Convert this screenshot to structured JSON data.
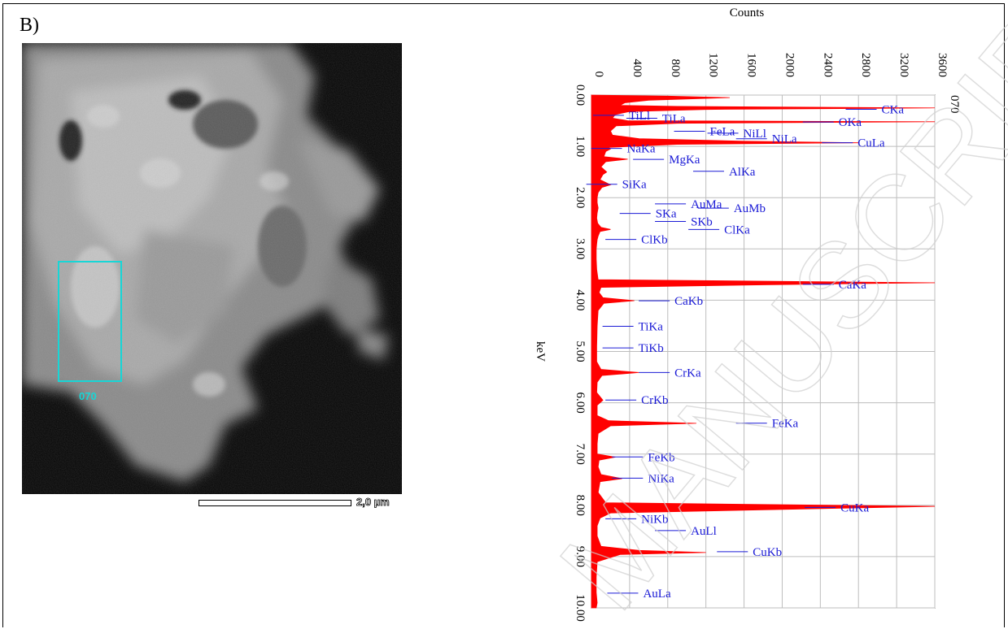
{
  "panel_label": "B)",
  "image": {
    "roi_label": "070",
    "scale_bar_label": "2,0 µm"
  },
  "watermark": "MANUSCRIPT",
  "chart_data": {
    "type": "area",
    "orientation": "rotated",
    "xlabel": "keV",
    "ylabel": "Counts",
    "spectrum_label": "070",
    "xlim": [
      0,
      10
    ],
    "ylim": [
      0,
      3600
    ],
    "x_ticks": [
      "0.00",
      "1.00",
      "2.00",
      "3.00",
      "4.00",
      "5.00",
      "6.00",
      "7.00",
      "8.00",
      "9.00",
      "10.00"
    ],
    "y_ticks": [
      "0",
      "400",
      "800",
      "1200",
      "1600",
      "2000",
      "2400",
      "2800",
      "3200",
      "3600"
    ],
    "grid": true,
    "fill_color": "#ff0000",
    "label_color": "#1a1ad6",
    "spectrum": [
      [
        0.0,
        0
      ],
      [
        0.02,
        800
      ],
      [
        0.05,
        1450
      ],
      [
        0.1,
        600
      ],
      [
        0.15,
        350
      ],
      [
        0.2,
        300
      ],
      [
        0.22,
        900
      ],
      [
        0.25,
        3600
      ],
      [
        0.28,
        1200
      ],
      [
        0.32,
        400
      ],
      [
        0.38,
        250
      ],
      [
        0.45,
        220
      ],
      [
        0.5,
        380
      ],
      [
        0.52,
        3600
      ],
      [
        0.55,
        900
      ],
      [
        0.6,
        260
      ],
      [
        0.7,
        200
      ],
      [
        0.78,
        220
      ],
      [
        0.85,
        500
      ],
      [
        0.9,
        1600
      ],
      [
        0.93,
        2800
      ],
      [
        0.96,
        900
      ],
      [
        1.02,
        180
      ],
      [
        1.05,
        200
      ],
      [
        1.1,
        150
      ],
      [
        1.2,
        130
      ],
      [
        1.25,
        380
      ],
      [
        1.3,
        150
      ],
      [
        1.4,
        100
      ],
      [
        1.5,
        160
      ],
      [
        1.55,
        120
      ],
      [
        1.65,
        90
      ],
      [
        1.75,
        200
      ],
      [
        1.8,
        110
      ],
      [
        1.9,
        70
      ],
      [
        2.0,
        60
      ],
      [
        2.1,
        60
      ],
      [
        2.2,
        70
      ],
      [
        2.3,
        60
      ],
      [
        2.4,
        55
      ],
      [
        2.5,
        65
      ],
      [
        2.58,
        100
      ],
      [
        2.62,
        200
      ],
      [
        2.66,
        90
      ],
      [
        2.75,
        70
      ],
      [
        2.82,
        60
      ],
      [
        2.9,
        55
      ],
      [
        3.0,
        50
      ],
      [
        3.2,
        50
      ],
      [
        3.4,
        55
      ],
      [
        3.6,
        70
      ],
      [
        3.66,
        3600
      ],
      [
        3.7,
        1800
      ],
      [
        3.75,
        100
      ],
      [
        3.85,
        80
      ],
      [
        3.95,
        120
      ],
      [
        4.01,
        450
      ],
      [
        4.06,
        130
      ],
      [
        4.2,
        70
      ],
      [
        4.5,
        60
      ],
      [
        4.9,
        55
      ],
      [
        5.2,
        55
      ],
      [
        5.35,
        100
      ],
      [
        5.41,
        500
      ],
      [
        5.47,
        110
      ],
      [
        5.6,
        60
      ],
      [
        5.8,
        55
      ],
      [
        5.95,
        120
      ],
      [
        6.05,
        60
      ],
      [
        6.25,
        60
      ],
      [
        6.35,
        180
      ],
      [
        6.4,
        1100
      ],
      [
        6.45,
        200
      ],
      [
        6.6,
        70
      ],
      [
        6.8,
        60
      ],
      [
        7.0,
        60
      ],
      [
        7.06,
        250
      ],
      [
        7.12,
        80
      ],
      [
        7.25,
        70
      ],
      [
        7.4,
        100
      ],
      [
        7.48,
        320
      ],
      [
        7.54,
        90
      ],
      [
        7.75,
        70
      ],
      [
        7.95,
        150
      ],
      [
        8.02,
        3600
      ],
      [
        8.08,
        2000
      ],
      [
        8.15,
        200
      ],
      [
        8.25,
        90
      ],
      [
        8.4,
        60
      ],
      [
        8.6,
        60
      ],
      [
        8.8,
        100
      ],
      [
        8.88,
        500
      ],
      [
        8.92,
        1200
      ],
      [
        8.96,
        300
      ],
      [
        9.1,
        60
      ],
      [
        9.4,
        50
      ],
      [
        9.7,
        50
      ],
      [
        9.9,
        60
      ],
      [
        10.0,
        50
      ]
    ],
    "peaks": [
      {
        "label": "CKa",
        "kev": 0.277,
        "counts": 3580,
        "label_counts": 3050
      },
      {
        "label": "TiLl",
        "kev": 0.395,
        "counts": 800,
        "label_counts": 400
      },
      {
        "label": "TiLa",
        "kev": 0.452,
        "counts": 800,
        "label_counts": 750
      },
      {
        "label": "OKa",
        "kev": 0.525,
        "counts": 3580,
        "label_counts": 2600
      },
      {
        "label": "FeLa",
        "kev": 0.705,
        "counts": 700,
        "label_counts": 1250
      },
      {
        "label": "NiLl",
        "kev": 0.743,
        "counts": 700,
        "label_counts": 1600
      },
      {
        "label": "NiLa",
        "kev": 0.851,
        "counts": 1500,
        "label_counts": 1900
      },
      {
        "label": "CuLa",
        "kev": 0.93,
        "counts": 2700,
        "label_counts": 2800
      },
      {
        "label": "NaKa",
        "kev": 1.041,
        "counts": 700,
        "label_counts": 380
      },
      {
        "label": "MgKa",
        "kev": 1.253,
        "counts": 1100,
        "label_counts": 820
      },
      {
        "label": "AlKa",
        "kev": 1.486,
        "counts": 1100,
        "label_counts": 1450
      },
      {
        "label": "SiKa",
        "kev": 1.739,
        "counts": 600,
        "label_counts": 330
      },
      {
        "label": "AuMa",
        "kev": 2.121,
        "counts": 700,
        "label_counts": 1050
      },
      {
        "label": "AuMb",
        "kev": 2.204,
        "counts": 700,
        "label_counts": 1500
      },
      {
        "label": "SKa",
        "kev": 2.307,
        "counts": 700,
        "label_counts": 680
      },
      {
        "label": "SKb",
        "kev": 2.464,
        "counts": 600,
        "label_counts": 1050
      },
      {
        "label": "ClKa",
        "kev": 2.621,
        "counts": 900,
        "label_counts": 1400
      },
      {
        "label": "ClKb",
        "kev": 2.815,
        "counts": 500,
        "label_counts": 530
      },
      {
        "label": "CaKa",
        "kev": 3.69,
        "counts": 3400,
        "label_counts": 2600
      },
      {
        "label": "CaKb",
        "kev": 4.012,
        "counts": 900,
        "label_counts": 880
      },
      {
        "label": "TiKa",
        "kev": 4.508,
        "counts": 500,
        "label_counts": 500
      },
      {
        "label": "TiKb",
        "kev": 4.931,
        "counts": 500,
        "label_counts": 500
      },
      {
        "label": "CrKa",
        "kev": 5.411,
        "counts": 900,
        "label_counts": 880
      },
      {
        "label": "CrKb",
        "kev": 5.946,
        "counts": 500,
        "label_counts": 530
      },
      {
        "label": "FeKa",
        "kev": 6.398,
        "counts": 1900,
        "label_counts": 1900
      },
      {
        "label": "FeKb",
        "kev": 7.057,
        "counts": 600,
        "label_counts": 600
      },
      {
        "label": "NiKa",
        "kev": 7.471,
        "counts": 600,
        "label_counts": 600
      },
      {
        "label": "CuKa",
        "kev": 8.04,
        "counts": 3600,
        "label_counts": 2620
      },
      {
        "label": "NiKb",
        "kev": 8.263,
        "counts": 500,
        "label_counts": 530
      },
      {
        "label": "AuLl",
        "kev": 8.493,
        "counts": 500,
        "label_counts": 1050
      },
      {
        "label": "CuKb",
        "kev": 8.904,
        "counts": 1700,
        "label_counts": 1700
      },
      {
        "label": "AuLa",
        "kev": 9.712,
        "counts": 600,
        "label_counts": 550
      }
    ]
  }
}
